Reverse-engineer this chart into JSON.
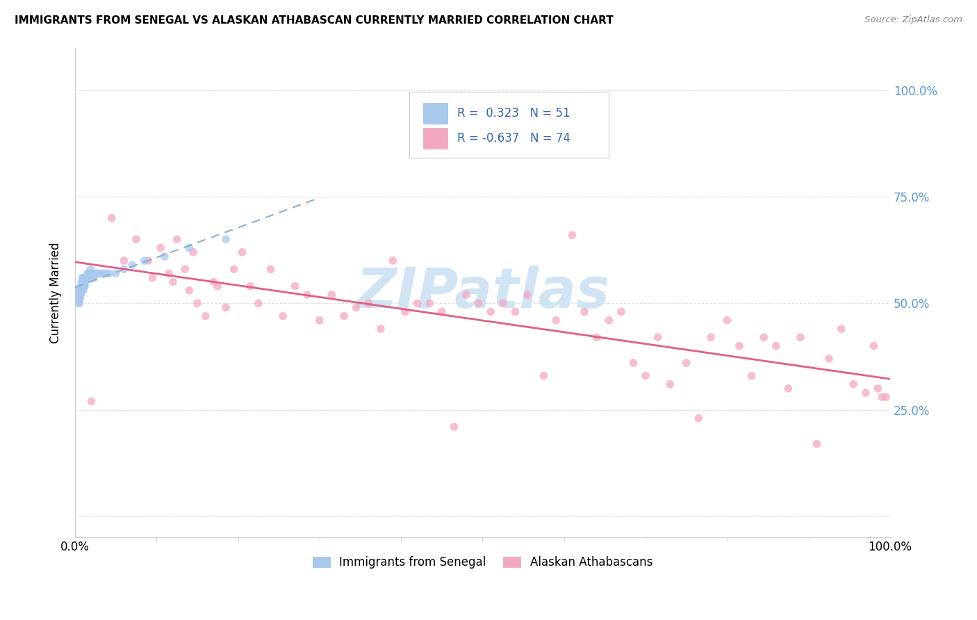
{
  "title": "IMMIGRANTS FROM SENEGAL VS ALASKAN ATHABASCAN CURRENTLY MARRIED CORRELATION CHART",
  "source": "Source: ZipAtlas.com",
  "ylabel": "Currently Married",
  "blue_color": "#a8c8ee",
  "pink_color": "#f4a8c0",
  "blue_line_color": "#6699cc",
  "pink_line_color": "#e06080",
  "scatter_size": 70,
  "scatter_alpha": 0.75,
  "watermark": "ZIPatlas",
  "watermark_color": "#d0e4f4",
  "background_color": "#ffffff",
  "grid_color": "#e0e0e0",
  "xlim": [
    0.0,
    1.0
  ],
  "ylim": [
    -0.05,
    1.1
  ],
  "ytick_values": [
    0.0,
    0.25,
    0.5,
    0.75,
    1.0
  ],
  "right_ytick_labels": [
    "100.0%",
    "75.0%",
    "50.0%",
    "25.0%"
  ],
  "right_ytick_values": [
    1.0,
    0.75,
    0.5,
    0.25
  ],
  "blue_scatter_x": [
    0.005,
    0.005,
    0.005,
    0.005,
    0.005,
    0.006,
    0.006,
    0.006,
    0.007,
    0.007,
    0.007,
    0.008,
    0.008,
    0.008,
    0.009,
    0.009,
    0.009,
    0.01,
    0.01,
    0.01,
    0.01,
    0.011,
    0.011,
    0.012,
    0.012,
    0.013,
    0.013,
    0.014,
    0.015,
    0.015,
    0.016,
    0.017,
    0.018,
    0.019,
    0.02,
    0.021,
    0.022,
    0.023,
    0.025,
    0.027,
    0.03,
    0.033,
    0.038,
    0.042,
    0.05,
    0.06,
    0.07,
    0.085,
    0.11,
    0.14,
    0.185
  ],
  "blue_scatter_y": [
    0.53,
    0.52,
    0.51,
    0.5,
    0.5,
    0.53,
    0.52,
    0.51,
    0.54,
    0.53,
    0.52,
    0.55,
    0.54,
    0.53,
    0.56,
    0.55,
    0.54,
    0.56,
    0.55,
    0.54,
    0.53,
    0.55,
    0.54,
    0.55,
    0.54,
    0.56,
    0.55,
    0.56,
    0.57,
    0.56,
    0.56,
    0.57,
    0.57,
    0.58,
    0.57,
    0.57,
    0.56,
    0.56,
    0.57,
    0.57,
    0.57,
    0.57,
    0.57,
    0.57,
    0.57,
    0.58,
    0.59,
    0.6,
    0.61,
    0.63,
    0.65
  ],
  "pink_scatter_x": [
    0.02,
    0.045,
    0.06,
    0.075,
    0.09,
    0.095,
    0.105,
    0.115,
    0.12,
    0.125,
    0.135,
    0.14,
    0.145,
    0.15,
    0.16,
    0.17,
    0.175,
    0.185,
    0.195,
    0.205,
    0.215,
    0.225,
    0.24,
    0.255,
    0.27,
    0.285,
    0.3,
    0.315,
    0.33,
    0.345,
    0.36,
    0.375,
    0.39,
    0.405,
    0.42,
    0.435,
    0.45,
    0.465,
    0.48,
    0.495,
    0.51,
    0.525,
    0.54,
    0.555,
    0.575,
    0.59,
    0.61,
    0.625,
    0.64,
    0.655,
    0.67,
    0.685,
    0.7,
    0.715,
    0.73,
    0.75,
    0.765,
    0.78,
    0.8,
    0.815,
    0.83,
    0.845,
    0.86,
    0.875,
    0.89,
    0.91,
    0.925,
    0.94,
    0.955,
    0.97,
    0.98,
    0.985,
    0.99,
    0.995
  ],
  "pink_scatter_y": [
    0.27,
    0.7,
    0.6,
    0.65,
    0.6,
    0.56,
    0.63,
    0.57,
    0.55,
    0.65,
    0.58,
    0.53,
    0.62,
    0.5,
    0.47,
    0.55,
    0.54,
    0.49,
    0.58,
    0.62,
    0.54,
    0.5,
    0.58,
    0.47,
    0.54,
    0.52,
    0.46,
    0.52,
    0.47,
    0.49,
    0.5,
    0.44,
    0.6,
    0.48,
    0.5,
    0.5,
    0.48,
    0.21,
    0.52,
    0.5,
    0.48,
    0.5,
    0.48,
    0.52,
    0.33,
    0.46,
    0.66,
    0.48,
    0.42,
    0.46,
    0.48,
    0.36,
    0.33,
    0.42,
    0.31,
    0.36,
    0.23,
    0.42,
    0.46,
    0.4,
    0.33,
    0.42,
    0.4,
    0.3,
    0.42,
    0.17,
    0.37,
    0.44,
    0.31,
    0.29,
    0.4,
    0.3,
    0.28,
    0.28
  ],
  "blue_line_xlim": [
    0.0,
    0.3
  ],
  "pink_line_xlim": [
    0.0,
    1.0
  ]
}
